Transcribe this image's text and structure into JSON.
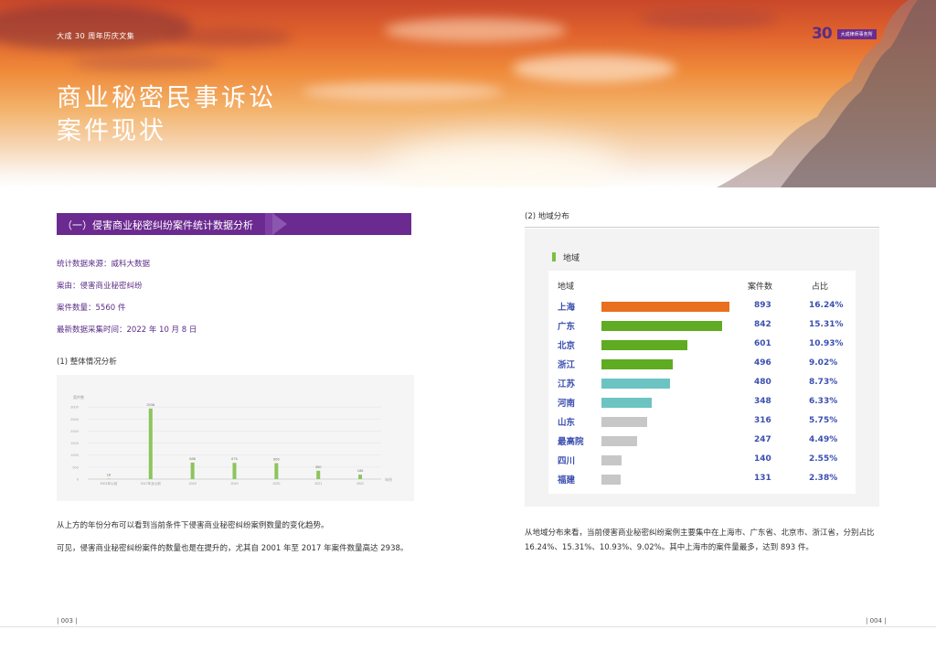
{
  "header": {
    "series_title": "大成 30 周年历庆文集",
    "logo_number": "30",
    "logo_tag": "大成律师事务所"
  },
  "page_title_lines": [
    "商业秘密民事诉讼",
    "案件现状"
  ],
  "section": {
    "banner": "（一）侵害商业秘密纠纷案件统计数据分析",
    "info": [
      "统计数据来源：威科大数据",
      "案由：侵害商业秘密纠纷",
      "案件数量：5560 件",
      "最新数据采集时间：2022 年 10 月 8 日"
    ],
    "overall_title": "(1) 整体情况分析",
    "para1": "从上方的年份分布可以看到当前条件下侵害商业秘密纠纷案例数量的变化趋势。",
    "para2": "可见，侵害商业秘密纠纷案件的数量也是在提升的，尤其自 2001 年至 2017 年案件数量高达 2938。"
  },
  "chart_data": {
    "type": "bar",
    "ylabel": "案件数",
    "xlabel": "年份",
    "ylim": [
      0,
      3500
    ],
    "yticks": [
      0,
      500,
      1000,
      1500,
      2000,
      2500,
      3000
    ],
    "categories": [
      "2001年以前",
      "2017年及以前",
      "2018",
      "2019",
      "2020",
      "2021",
      "2022"
    ],
    "values": [
      18,
      2938,
      688,
      676,
      665,
      350,
      186
    ],
    "color": "#8cc55c"
  },
  "region": {
    "title": "(2) 地域分布",
    "legend": "地域",
    "headers": {
      "name": "地域",
      "count": "案件数",
      "pct": "占比"
    },
    "rows": [
      {
        "name": "上海",
        "count": "893",
        "pct": "16.24%",
        "value": 893,
        "color": "#e8701f"
      },
      {
        "name": "广东",
        "count": "842",
        "pct": "15.31%",
        "value": 842,
        "color": "#5fab22"
      },
      {
        "name": "北京",
        "count": "601",
        "pct": "10.93%",
        "value": 601,
        "color": "#5fab22"
      },
      {
        "name": "浙江",
        "count": "496",
        "pct": "9.02%",
        "value": 496,
        "color": "#5fab22"
      },
      {
        "name": "江苏",
        "count": "480",
        "pct": "8.73%",
        "value": 480,
        "color": "#6cc4c2"
      },
      {
        "name": "河南",
        "count": "348",
        "pct": "6.33%",
        "value": 348,
        "color": "#6cc4c2"
      },
      {
        "name": "山东",
        "count": "316",
        "pct": "5.75%",
        "value": 316,
        "color": "#c7c7c7"
      },
      {
        "name": "最高院",
        "count": "247",
        "pct": "4.49%",
        "value": 247,
        "color": "#c7c7c7"
      },
      {
        "name": "四川",
        "count": "140",
        "pct": "2.55%",
        "value": 140,
        "color": "#c7c7c7"
      },
      {
        "name": "福建",
        "count": "131",
        "pct": "2.38%",
        "value": 131,
        "color": "#c7c7c7"
      }
    ],
    "para_line1": "从地域分布来看，当前侵害商业秘密纠纷案例主要集中在上海市、广东省、北京市、浙江省，分别占比",
    "para_line2": "16.24%、15.31%、10.93%、9.02%。其中上海市的案件量最多，达到 893 件。"
  },
  "footer": {
    "page_left": "| 003 |",
    "page_right": "| 004 |"
  }
}
